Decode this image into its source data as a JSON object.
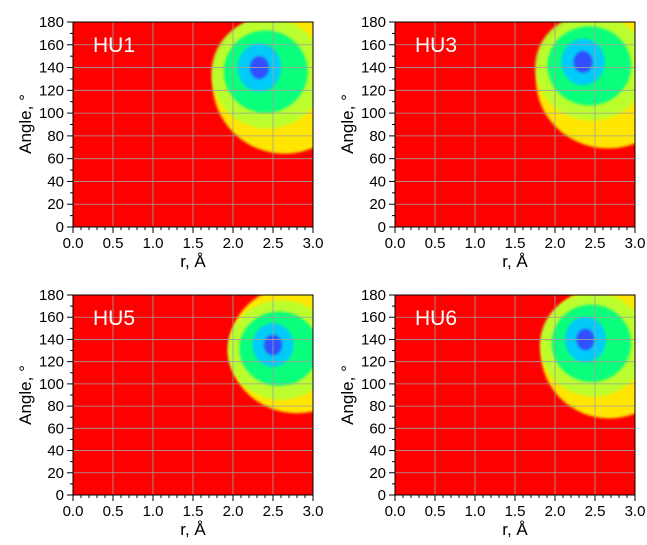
{
  "chart_data": [
    {
      "type": "heatmap",
      "label": "HU1",
      "xlabel": "r, Å",
      "ylabel": "Angle, °",
      "xlim": [
        0.0,
        3.0
      ],
      "ylim": [
        0,
        180
      ],
      "x_ticks": [
        "0.0",
        "0.5",
        "1.0",
        "1.5",
        "2.0",
        "2.5",
        "3.0"
      ],
      "y_ticks": [
        "0",
        "20",
        "40",
        "60",
        "80",
        "100",
        "120",
        "140",
        "160",
        "180"
      ],
      "grid": true,
      "background_color": "#ff0000",
      "colormap": [
        "#ff0000",
        "#ffff00",
        "#00ff80",
        "#00c8ff",
        "#3050ff"
      ],
      "density": {
        "peak_r": 2.33,
        "peak_angle": 140,
        "core_r_range": [
          2.2,
          2.5
        ],
        "core_angle_range": [
          120,
          160
        ],
        "extent_r_min": 2.05,
        "extent_angle_range": [
          55,
          180
        ]
      }
    },
    {
      "type": "heatmap",
      "label": "HU3",
      "xlabel": "r, Å",
      "ylabel": "Angle, °",
      "xlim": [
        0.0,
        3.0
      ],
      "ylim": [
        0,
        180
      ],
      "x_ticks": [
        "0.0",
        "0.5",
        "1.0",
        "1.5",
        "2.0",
        "2.5",
        "3.0"
      ],
      "y_ticks": [
        "0",
        "20",
        "40",
        "60",
        "80",
        "100",
        "120",
        "140",
        "160",
        "180"
      ],
      "grid": true,
      "background_color": "#ff0000",
      "colormap": [
        "#ff0000",
        "#ffff00",
        "#00ff80",
        "#00c8ff",
        "#3050ff"
      ],
      "density": {
        "peak_r": 2.35,
        "peak_angle": 145,
        "core_r_range": [
          2.2,
          2.5
        ],
        "core_angle_range": [
          125,
          162
        ],
        "extent_r_min": 2.05,
        "extent_angle_range": [
          60,
          180
        ]
      }
    },
    {
      "type": "heatmap",
      "label": "HU5",
      "xlabel": "r, Å",
      "ylabel": "Angle, °",
      "xlim": [
        0.0,
        3.0
      ],
      "ylim": [
        0,
        180
      ],
      "x_ticks": [
        "0.0",
        "0.5",
        "1.0",
        "1.5",
        "2.0",
        "2.5",
        "3.0"
      ],
      "y_ticks": [
        "0",
        "20",
        "40",
        "60",
        "80",
        "100",
        "120",
        "140",
        "160",
        "180"
      ],
      "grid": true,
      "background_color": "#ff0000",
      "colormap": [
        "#ff0000",
        "#ffff00",
        "#00ff80",
        "#00c8ff",
        "#3050ff"
      ],
      "density": {
        "peak_r": 2.5,
        "peak_angle": 135,
        "core_r_range": [
          2.3,
          3.0
        ],
        "core_angle_range": [
          110,
          160
        ],
        "extent_r_min": 2.1,
        "extent_angle_range": [
          65,
          180
        ]
      }
    },
    {
      "type": "heatmap",
      "label": "HU6",
      "xlabel": "r, Å",
      "ylabel": "Angle, °",
      "xlim": [
        0.0,
        3.0
      ],
      "ylim": [
        0,
        180
      ],
      "x_ticks": [
        "0.0",
        "0.5",
        "1.0",
        "1.5",
        "2.0",
        "2.5",
        "3.0"
      ],
      "y_ticks": [
        "0",
        "20",
        "40",
        "60",
        "80",
        "100",
        "120",
        "140",
        "160",
        "180"
      ],
      "grid": true,
      "background_color": "#ff0000",
      "colormap": [
        "#ff0000",
        "#ffff00",
        "#00ff80",
        "#00c8ff",
        "#3050ff"
      ],
      "density": {
        "peak_r": 2.38,
        "peak_angle": 140,
        "core_r_range": [
          2.2,
          2.55
        ],
        "core_angle_range": [
          115,
          160
        ],
        "extent_r_min": 2.1,
        "extent_angle_range": [
          60,
          180
        ]
      }
    }
  ]
}
